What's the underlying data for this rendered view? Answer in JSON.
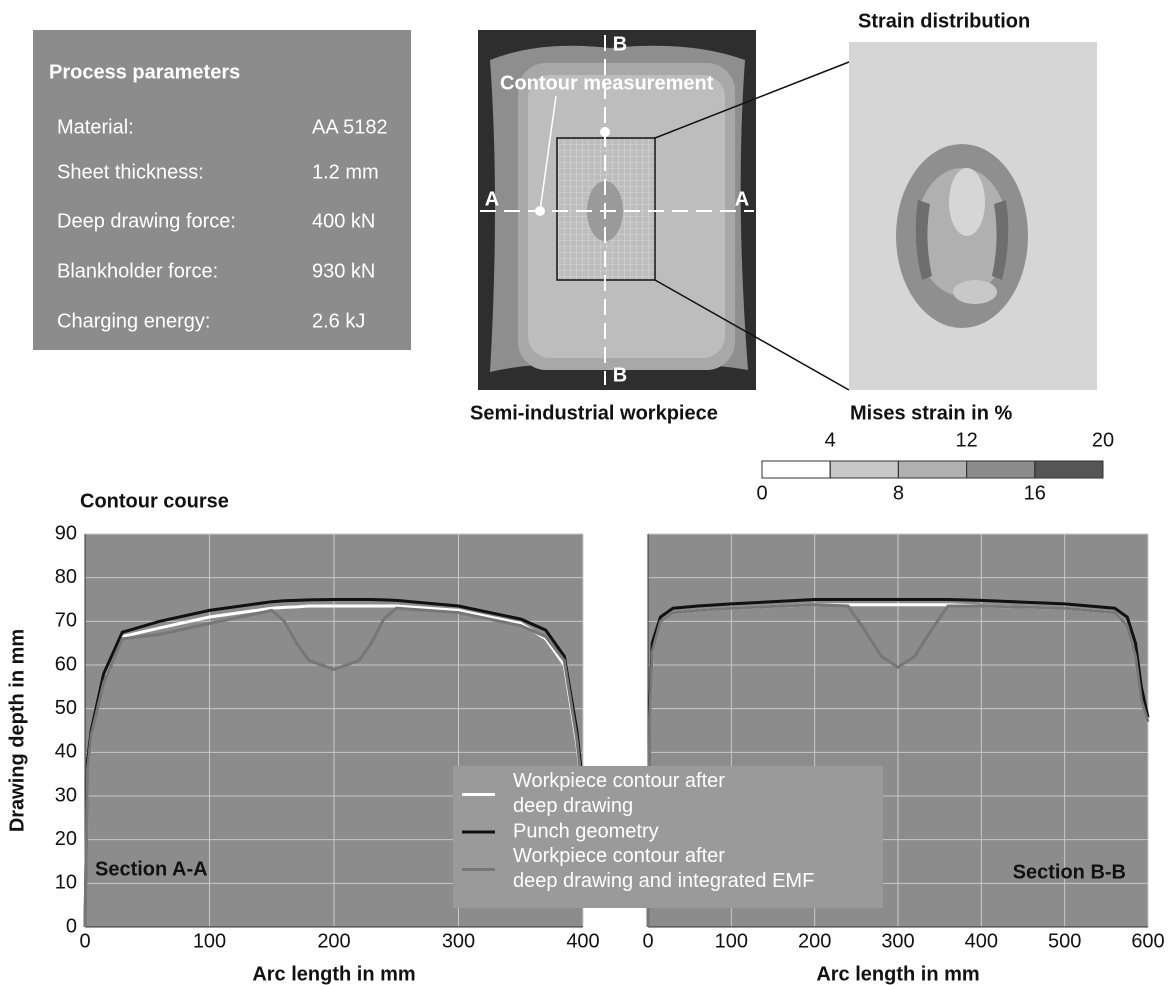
{
  "process_parameters": {
    "title": "Process parameters",
    "rows": [
      [
        "Material:",
        "AA 5182"
      ],
      [
        "Sheet thickness:",
        "1.2 mm"
      ],
      [
        "Deep drawing force:",
        "400 kN"
      ],
      [
        "Blankholder force:",
        "930 kN"
      ],
      [
        "Charging energy:",
        "2.6 kJ"
      ]
    ]
  },
  "workpiece": {
    "caption": "Semi-industrial workpiece",
    "overlay_label": "Contour measurement",
    "section_labels": {
      "top": "B",
      "bottom": "B",
      "left": "A",
      "right": "A"
    }
  },
  "strain": {
    "title": "Strain distribution",
    "caption": "Mises strain in %",
    "colorbar": {
      "lim": [
        0,
        20
      ],
      "ticks": [
        0,
        4,
        8,
        12,
        16,
        20
      ],
      "colors": [
        "#ffffff",
        "#c8c8c8",
        "#b0b0b0",
        "#8c8c8c",
        "#555555"
      ]
    }
  },
  "chart_data": [
    {
      "type": "line",
      "title": "Contour course",
      "ylabel": "Drawing depth in mm",
      "xlabel": "Arc length in mm",
      "annotation": "Section A-A",
      "x": [
        0,
        2,
        5,
        15,
        30,
        60,
        100,
        150,
        160,
        170,
        180,
        200,
        220,
        230,
        240,
        250,
        300,
        350,
        370,
        385,
        395,
        400
      ],
      "series": [
        {
          "name": "Workpiece contour after\ndeep drawing",
          "color": "#ffffff",
          "values": [
            0,
            36,
            44,
            57,
            66.5,
            68.5,
            71,
            73,
            73.2,
            73.3,
            73.5,
            73.5,
            73.5,
            73.5,
            73.5,
            73.5,
            72.5,
            69.5,
            66,
            60,
            42,
            30
          ]
        },
        {
          "name": "Punch geometry",
          "color": "#111111",
          "values": [
            0,
            38,
            45,
            58,
            67.5,
            70,
            72.5,
            74.5,
            74.7,
            74.8,
            74.9,
            75,
            75,
            75,
            74.9,
            74.8,
            73.5,
            70.5,
            68,
            62,
            45,
            32
          ]
        },
        {
          "name": "Workpiece contour after\ndeep drawing and integrated EMF",
          "color": "#777777",
          "values": [
            0,
            36,
            44,
            56,
            66,
            67,
            69.5,
            72.5,
            70,
            65,
            61,
            59,
            61,
            65,
            70.5,
            73,
            72,
            69,
            66.5,
            61,
            43,
            30
          ]
        }
      ],
      "xlim": [
        0,
        400
      ],
      "xticks": [
        0,
        100,
        200,
        300,
        400
      ],
      "ylim": [
        0,
        90
      ],
      "yticks": [
        0,
        10,
        20,
        30,
        40,
        50,
        60,
        70,
        80,
        90
      ],
      "ytick_labels": true,
      "grid": true,
      "background": "#8c8c8c"
    },
    {
      "type": "line",
      "xlabel": "Arc length in mm",
      "annotation": "Section B-B",
      "x": [
        0,
        2,
        5,
        15,
        30,
        60,
        100,
        200,
        240,
        260,
        280,
        300,
        320,
        340,
        360,
        400,
        500,
        560,
        575,
        585,
        592,
        600
      ],
      "series": [
        {
          "color": "#ffffff",
          "values": [
            0,
            48,
            63,
            70,
            72,
            72.5,
            73,
            73.8,
            73.8,
            73.8,
            73.8,
            73.8,
            73.8,
            73.8,
            73.8,
            73.5,
            73,
            72,
            69,
            62,
            52,
            47
          ]
        },
        {
          "color": "#111111",
          "values": [
            0,
            50,
            65,
            71,
            73,
            73.5,
            74,
            75,
            75,
            75,
            75,
            75,
            75,
            75,
            75,
            74.8,
            74,
            73,
            71,
            65,
            55,
            48
          ]
        },
        {
          "color": "#777777",
          "values": [
            0,
            48,
            63,
            70,
            72,
            72.5,
            73,
            73.8,
            73.5,
            68,
            62,
            59.5,
            62,
            68,
            73.5,
            73.5,
            73,
            72,
            69,
            62,
            52,
            47
          ]
        }
      ],
      "xlim": [
        0,
        600
      ],
      "xticks": [
        0,
        100,
        200,
        300,
        400,
        500,
        600
      ],
      "ylim": [
        0,
        90
      ],
      "yticks": [
        0,
        10,
        20,
        30,
        40,
        50,
        60,
        70,
        80,
        90
      ],
      "ytick_labels": false,
      "grid": true,
      "background": "#8c8c8c"
    }
  ]
}
